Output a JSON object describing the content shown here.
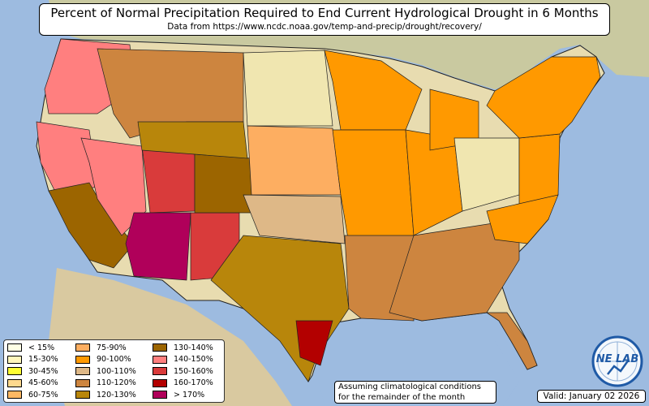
{
  "title": "Percent of Normal Precipitation Required to End Current Hydrological Drought in 6 Months",
  "subtitle": "Data from https://www.ncdc.noaa.gov/temp-and-precip/drought/recovery/",
  "note_lines": [
    "Assuming climatological conditions",
    "for the remainder of the month"
  ],
  "valid": "Valid: January 02 2026",
  "logo": {
    "text": "NE LAB"
  },
  "legend": {
    "col1": [
      {
        "label": "< 15%",
        "color": "#ffffe5"
      },
      {
        "label": "15-30%",
        "color": "#fff7bc"
      },
      {
        "label": "30-45%",
        "color": "#ffff33"
      },
      {
        "label": "45-60%",
        "color": "#fed98e"
      },
      {
        "label": "60-75%",
        "color": "#fdb863"
      }
    ],
    "col2": [
      {
        "label": "75-90%",
        "color": "#fdae61"
      },
      {
        "label": "90-100%",
        "color": "#ff9900"
      },
      {
        "label": "100-110%",
        "color": "#deb887"
      },
      {
        "label": "110-120%",
        "color": "#cd853f"
      },
      {
        "label": "120-130%",
        "color": "#b8860b"
      }
    ],
    "col3": [
      {
        "label": "130-140%",
        "color": "#9c6500"
      },
      {
        "label": "140-150%",
        "color": "#ff7f7f"
      },
      {
        "label": "150-160%",
        "color": "#d93b3b"
      },
      {
        "label": "160-170%",
        "color": "#b30000"
      },
      {
        "label": "> 170%",
        "color": "#b0005a"
      }
    ]
  }
}
